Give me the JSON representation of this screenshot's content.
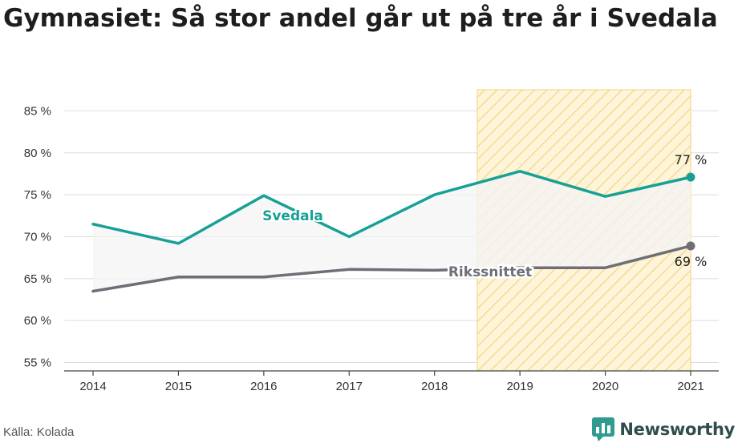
{
  "header": {
    "title": "Gymnasiet: Så stor andel går ut på tre år i Svedala"
  },
  "footer": {
    "source": "Källa: Kolada",
    "brand": "Newsworthy"
  },
  "colors": {
    "svedala": "#17a196",
    "riks": "#6f6e76",
    "highlight": "#f2c94c",
    "fill": "#f4f4f6",
    "grid": "#dddddd"
  },
  "chart_data": {
    "type": "line",
    "x": [
      2014,
      2015,
      2016,
      2017,
      2018,
      2019,
      2020,
      2021
    ],
    "ylim": [
      54,
      88
    ],
    "yticks": [
      55,
      60,
      65,
      70,
      75,
      80,
      85
    ],
    "ytick_labels": [
      "55 %",
      "60 %",
      "65 %",
      "70 %",
      "75 %",
      "80 %",
      "85 %"
    ],
    "xtick_labels": [
      "2014",
      "2015",
      "2016",
      "2017",
      "2018",
      "2019",
      "2020",
      "2021"
    ],
    "highlight_range": [
      2018.5,
      2021
    ],
    "series": [
      {
        "name": "Svedala",
        "values": [
          71.5,
          69.2,
          74.9,
          70.0,
          75.0,
          77.8,
          74.8,
          77.1
        ],
        "end_label": "77 %"
      },
      {
        "name": "Rikssnittet",
        "values": [
          63.5,
          65.2,
          65.2,
          66.1,
          66.0,
          66.3,
          66.3,
          68.9
        ],
        "end_label": "69 %"
      }
    ],
    "grid": true,
    "legend": "inline labels"
  }
}
